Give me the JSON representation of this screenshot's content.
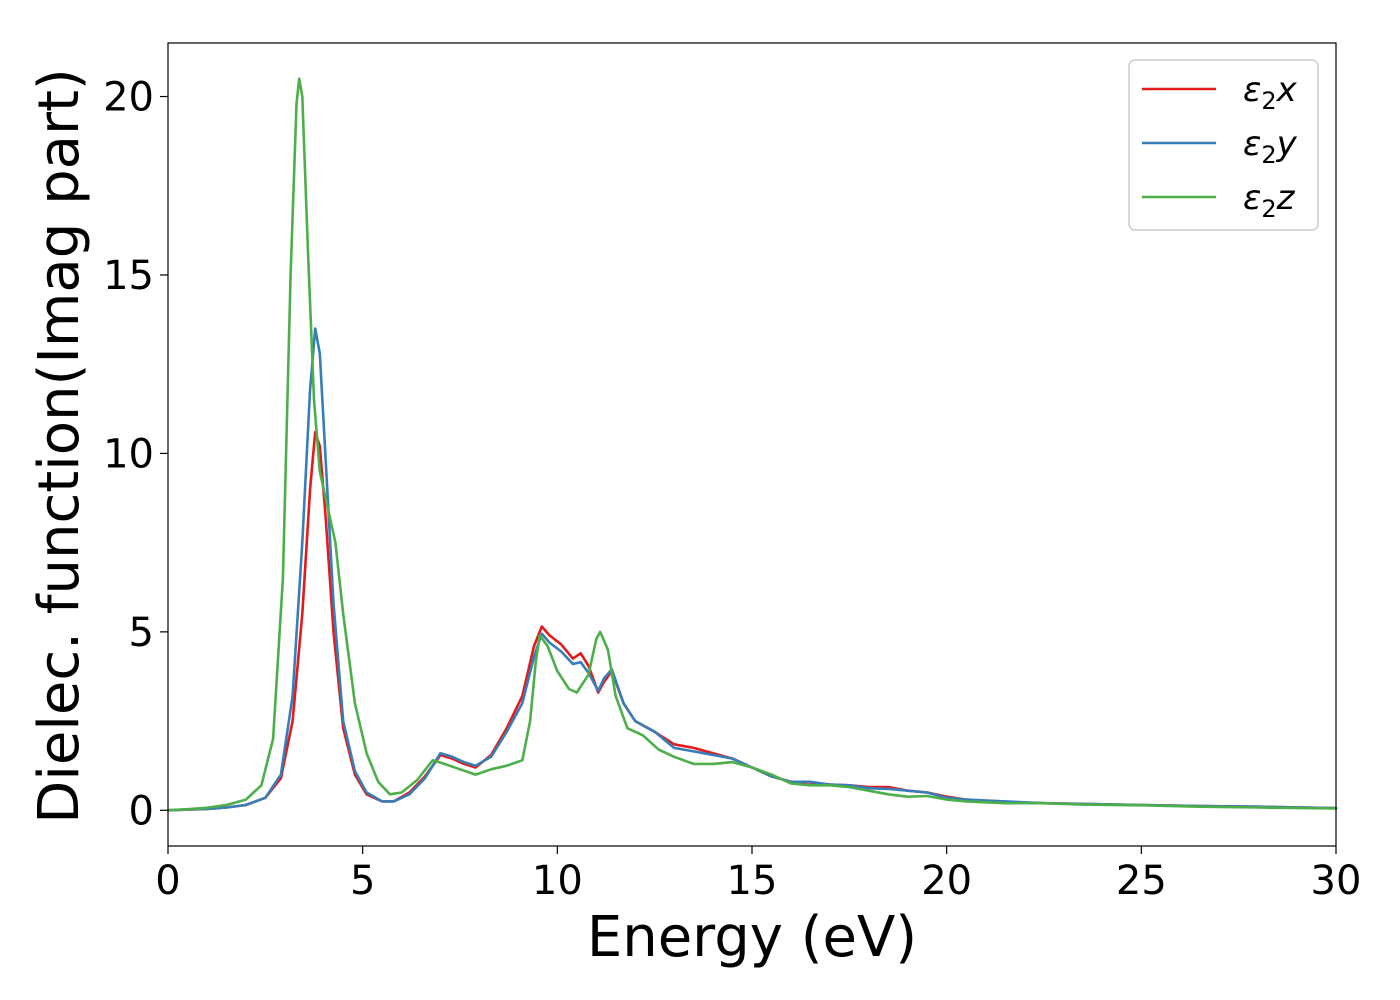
{
  "chart_data": {
    "type": "line",
    "title": "",
    "xlabel": "Energy (eV)",
    "ylabel": "Dielec. function(Imag part)",
    "xlim": [
      0,
      30
    ],
    "ylim": [
      -1,
      21.5
    ],
    "xticks": [
      0,
      5,
      10,
      15,
      20,
      25,
      30
    ],
    "yticks": [
      0,
      5,
      10,
      15,
      20
    ],
    "grid": false,
    "legend_position": "top-right",
    "series": [
      {
        "name": "ε2x",
        "legend_base": "ε",
        "legend_sub": "2",
        "legend_suffix": "x",
        "color": "#e41a1c",
        "points": [
          [
            0,
            0
          ],
          [
            0.5,
            0.02
          ],
          [
            1,
            0.04
          ],
          [
            1.5,
            0.08
          ],
          [
            2,
            0.15
          ],
          [
            2.5,
            0.35
          ],
          [
            2.9,
            0.9
          ],
          [
            3.2,
            2.5
          ],
          [
            3.45,
            5.5
          ],
          [
            3.65,
            9.0
          ],
          [
            3.78,
            10.6
          ],
          [
            3.9,
            10.2
          ],
          [
            4.05,
            8.2
          ],
          [
            4.25,
            5.0
          ],
          [
            4.5,
            2.3
          ],
          [
            4.8,
            1.0
          ],
          [
            5.1,
            0.45
          ],
          [
            5.5,
            0.25
          ],
          [
            5.8,
            0.25
          ],
          [
            6.2,
            0.5
          ],
          [
            6.6,
            0.95
          ],
          [
            7.0,
            1.55
          ],
          [
            7.3,
            1.45
          ],
          [
            7.6,
            1.3
          ],
          [
            7.9,
            1.2
          ],
          [
            8.3,
            1.55
          ],
          [
            8.7,
            2.3
          ],
          [
            9.1,
            3.2
          ],
          [
            9.4,
            4.6
          ],
          [
            9.6,
            5.15
          ],
          [
            9.8,
            4.9
          ],
          [
            10.1,
            4.65
          ],
          [
            10.4,
            4.25
          ],
          [
            10.6,
            4.4
          ],
          [
            10.8,
            4.05
          ],
          [
            11.05,
            3.3
          ],
          [
            11.2,
            3.6
          ],
          [
            11.4,
            3.9
          ],
          [
            11.7,
            3.0
          ],
          [
            12.0,
            2.5
          ],
          [
            12.5,
            2.2
          ],
          [
            13.0,
            1.85
          ],
          [
            13.5,
            1.75
          ],
          [
            14.0,
            1.6
          ],
          [
            14.5,
            1.45
          ],
          [
            15.0,
            1.2
          ],
          [
            15.5,
            0.95
          ],
          [
            16.0,
            0.8
          ],
          [
            16.5,
            0.78
          ],
          [
            17.0,
            0.72
          ],
          [
            17.5,
            0.7
          ],
          [
            18.0,
            0.65
          ],
          [
            18.5,
            0.65
          ],
          [
            19.0,
            0.55
          ],
          [
            19.5,
            0.5
          ],
          [
            20.0,
            0.38
          ],
          [
            20.5,
            0.3
          ],
          [
            21.5,
            0.22
          ],
          [
            22.5,
            0.2
          ],
          [
            23.5,
            0.18
          ],
          [
            25.0,
            0.15
          ],
          [
            26.5,
            0.12
          ],
          [
            28.0,
            0.1
          ],
          [
            30.0,
            0.06
          ]
        ]
      },
      {
        "name": "ε2y",
        "legend_base": "ε",
        "legend_sub": "2",
        "legend_suffix": "y",
        "color": "#377eb8",
        "points": [
          [
            0,
            0
          ],
          [
            0.5,
            0.02
          ],
          [
            1,
            0.04
          ],
          [
            1.5,
            0.08
          ],
          [
            2,
            0.15
          ],
          [
            2.5,
            0.35
          ],
          [
            2.9,
            1.0
          ],
          [
            3.2,
            3.2
          ],
          [
            3.45,
            7.5
          ],
          [
            3.65,
            11.8
          ],
          [
            3.78,
            13.5
          ],
          [
            3.9,
            12.8
          ],
          [
            4.05,
            9.8
          ],
          [
            4.25,
            5.8
          ],
          [
            4.5,
            2.5
          ],
          [
            4.8,
            1.1
          ],
          [
            5.1,
            0.5
          ],
          [
            5.5,
            0.25
          ],
          [
            5.8,
            0.25
          ],
          [
            6.2,
            0.45
          ],
          [
            6.6,
            0.9
          ],
          [
            7.0,
            1.6
          ],
          [
            7.3,
            1.5
          ],
          [
            7.6,
            1.35
          ],
          [
            7.9,
            1.25
          ],
          [
            8.3,
            1.5
          ],
          [
            8.7,
            2.2
          ],
          [
            9.1,
            3.0
          ],
          [
            9.4,
            4.3
          ],
          [
            9.6,
            4.95
          ],
          [
            9.8,
            4.7
          ],
          [
            10.1,
            4.45
          ],
          [
            10.4,
            4.1
          ],
          [
            10.6,
            4.15
          ],
          [
            10.8,
            3.85
          ],
          [
            11.05,
            3.35
          ],
          [
            11.2,
            3.7
          ],
          [
            11.4,
            3.95
          ],
          [
            11.7,
            3.0
          ],
          [
            12.0,
            2.5
          ],
          [
            12.5,
            2.2
          ],
          [
            13.0,
            1.75
          ],
          [
            13.5,
            1.65
          ],
          [
            14.0,
            1.55
          ],
          [
            14.5,
            1.45
          ],
          [
            15.0,
            1.2
          ],
          [
            15.5,
            0.95
          ],
          [
            16.0,
            0.8
          ],
          [
            16.5,
            0.8
          ],
          [
            17.0,
            0.72
          ],
          [
            17.5,
            0.7
          ],
          [
            18.0,
            0.62
          ],
          [
            18.5,
            0.6
          ],
          [
            19.0,
            0.55
          ],
          [
            19.5,
            0.5
          ],
          [
            20.0,
            0.35
          ],
          [
            20.5,
            0.3
          ],
          [
            21.5,
            0.25
          ],
          [
            22.5,
            0.2
          ],
          [
            23.5,
            0.18
          ],
          [
            25.0,
            0.15
          ],
          [
            26.5,
            0.12
          ],
          [
            28.0,
            0.1
          ],
          [
            30.0,
            0.06
          ]
        ]
      },
      {
        "name": "ε2z",
        "legend_base": "ε",
        "legend_sub": "2",
        "legend_suffix": "z",
        "color": "#4daf4a",
        "points": [
          [
            0,
            0
          ],
          [
            0.5,
            0.03
          ],
          [
            1,
            0.07
          ],
          [
            1.5,
            0.15
          ],
          [
            2,
            0.3
          ],
          [
            2.4,
            0.7
          ],
          [
            2.7,
            2.0
          ],
          [
            2.95,
            6.5
          ],
          [
            3.15,
            15.0
          ],
          [
            3.3,
            19.8
          ],
          [
            3.37,
            20.5
          ],
          [
            3.45,
            20.0
          ],
          [
            3.6,
            15.5
          ],
          [
            3.75,
            11.5
          ],
          [
            3.9,
            9.5
          ],
          [
            4.1,
            8.5
          ],
          [
            4.3,
            7.5
          ],
          [
            4.5,
            5.5
          ],
          [
            4.8,
            3.0
          ],
          [
            5.1,
            1.6
          ],
          [
            5.4,
            0.8
          ],
          [
            5.7,
            0.45
          ],
          [
            6.0,
            0.5
          ],
          [
            6.4,
            0.85
          ],
          [
            6.8,
            1.4
          ],
          [
            7.1,
            1.3
          ],
          [
            7.5,
            1.15
          ],
          [
            7.9,
            1.0
          ],
          [
            8.3,
            1.15
          ],
          [
            8.7,
            1.25
          ],
          [
            9.1,
            1.4
          ],
          [
            9.3,
            2.5
          ],
          [
            9.45,
            4.2
          ],
          [
            9.55,
            4.9
          ],
          [
            9.75,
            4.6
          ],
          [
            10.0,
            3.9
          ],
          [
            10.3,
            3.4
          ],
          [
            10.5,
            3.3
          ],
          [
            10.8,
            3.8
          ],
          [
            11.0,
            4.8
          ],
          [
            11.1,
            5.0
          ],
          [
            11.3,
            4.5
          ],
          [
            11.5,
            3.2
          ],
          [
            11.8,
            2.3
          ],
          [
            12.2,
            2.1
          ],
          [
            12.6,
            1.7
          ],
          [
            13.0,
            1.5
          ],
          [
            13.5,
            1.3
          ],
          [
            14.0,
            1.3
          ],
          [
            14.5,
            1.35
          ],
          [
            15.0,
            1.2
          ],
          [
            15.5,
            1.0
          ],
          [
            16.0,
            0.75
          ],
          [
            16.5,
            0.7
          ],
          [
            17.0,
            0.7
          ],
          [
            17.5,
            0.65
          ],
          [
            18.0,
            0.55
          ],
          [
            18.5,
            0.45
          ],
          [
            19.0,
            0.38
          ],
          [
            19.5,
            0.4
          ],
          [
            20.0,
            0.3
          ],
          [
            20.5,
            0.25
          ],
          [
            21.5,
            0.2
          ],
          [
            22.5,
            0.2
          ],
          [
            23.5,
            0.16
          ],
          [
            25.0,
            0.14
          ],
          [
            26.5,
            0.1
          ],
          [
            28.0,
            0.08
          ],
          [
            30.0,
            0.05
          ]
        ]
      }
    ]
  }
}
